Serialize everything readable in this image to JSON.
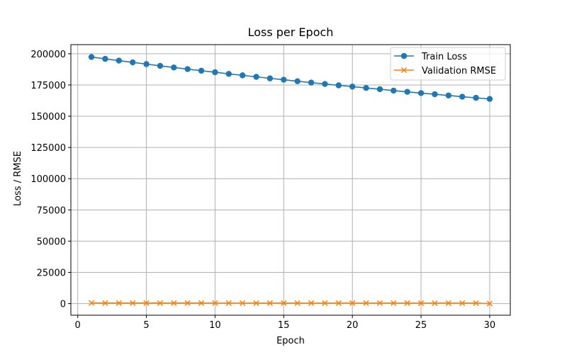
{
  "chart_data": {
    "type": "line",
    "title": "Loss per Epoch",
    "xlabel": "Epoch",
    "ylabel": "Loss / RMSE",
    "xlim": [
      -0.5,
      31.5
    ],
    "ylim": [
      -9300,
      207300
    ],
    "grid": true,
    "legend_position": "top-right",
    "x_ticks": [
      0,
      5,
      10,
      15,
      20,
      25,
      30
    ],
    "y_ticks": [
      0,
      25000,
      50000,
      75000,
      100000,
      125000,
      150000,
      175000,
      200000
    ],
    "x": [
      1,
      2,
      3,
      4,
      5,
      6,
      7,
      8,
      9,
      10,
      11,
      12,
      13,
      14,
      15,
      16,
      17,
      18,
      19,
      20,
      21,
      22,
      23,
      24,
      25,
      26,
      27,
      28,
      29,
      30
    ],
    "series": [
      {
        "name": "Train Loss",
        "color": "#1f77b4",
        "marker": "circle",
        "values": [
          197400,
          195900,
          194500,
          193100,
          191700,
          190300,
          189000,
          187700,
          186400,
          185200,
          183900,
          182700,
          181500,
          180300,
          179200,
          178000,
          176900,
          175800,
          174700,
          173700,
          172600,
          171600,
          170500,
          169500,
          168500,
          167600,
          166600,
          165600,
          164700,
          163800
        ]
      },
      {
        "name": "Validation RMSE",
        "color": "#ff7f0e",
        "marker": "x",
        "values": [
          450,
          445,
          440,
          436,
          432,
          428,
          424,
          420,
          417,
          413,
          410,
          407,
          404,
          401,
          398,
          395,
          392,
          390,
          387,
          385,
          382,
          380,
          378,
          375,
          373,
          371,
          369,
          367,
          365,
          0
        ]
      }
    ]
  }
}
